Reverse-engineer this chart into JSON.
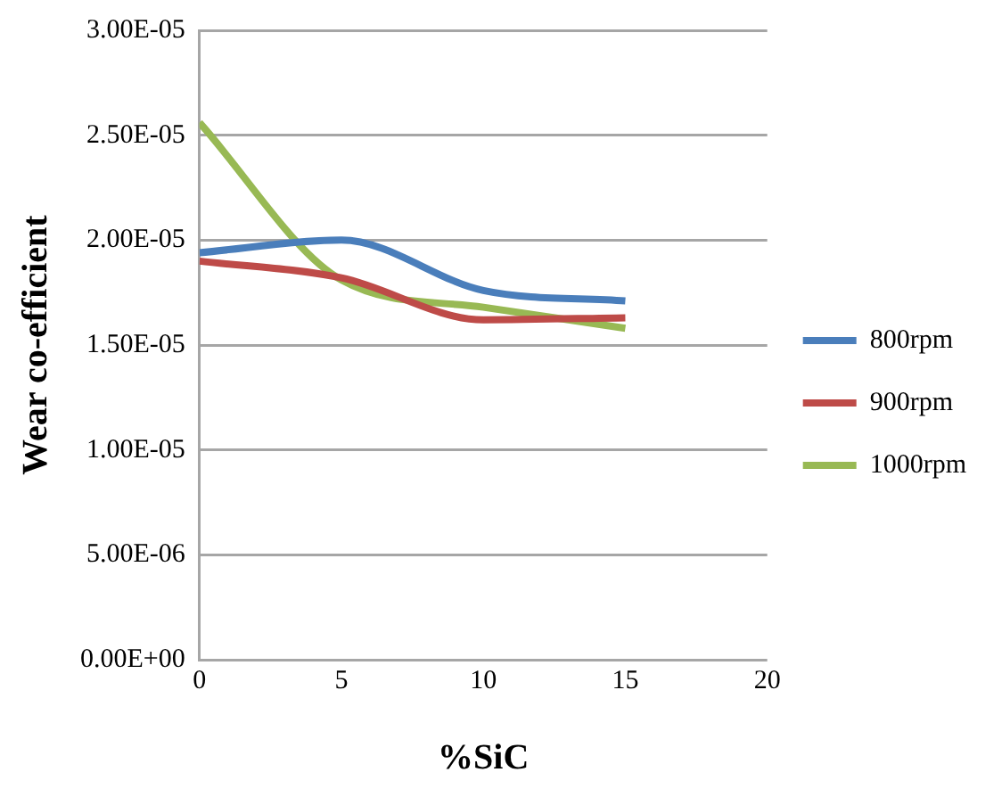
{
  "chart_data": {
    "type": "line",
    "xlabel": "%SiC",
    "ylabel": "Wear co-efficient",
    "x": [
      0,
      5,
      10,
      15
    ],
    "series": [
      {
        "name": "800rpm",
        "color": "#4a7ebb",
        "values": [
          1.94e-05,
          2e-05,
          1.76e-05,
          1.71e-05
        ]
      },
      {
        "name": "900rpm",
        "color": "#be4b48",
        "values": [
          1.9e-05,
          1.82e-05,
          1.62e-05,
          1.63e-05
        ]
      },
      {
        "name": "1000rpm",
        "color": "#98b954",
        "values": [
          2.56e-05,
          1.81e-05,
          1.68e-05,
          1.58e-05
        ]
      }
    ],
    "xlim": [
      0,
      20
    ],
    "xticks": [
      0,
      5,
      10,
      15,
      20
    ],
    "ylim": [
      0,
      3e-05
    ],
    "yticks": [
      {
        "value": 0,
        "label": "0.00E+00"
      },
      {
        "value": 5e-06,
        "label": "5.00E-06"
      },
      {
        "value": 1e-05,
        "label": "1.00E-05"
      },
      {
        "value": 1.5e-05,
        "label": "1.50E-05"
      },
      {
        "value": 2e-05,
        "label": "2.00E-05"
      },
      {
        "value": 2.5e-05,
        "label": "2.50E-05"
      },
      {
        "value": 3e-05,
        "label": "3.00E-05"
      }
    ],
    "grid": "y",
    "legend": "right",
    "marker": "none",
    "line_style": "solid"
  }
}
